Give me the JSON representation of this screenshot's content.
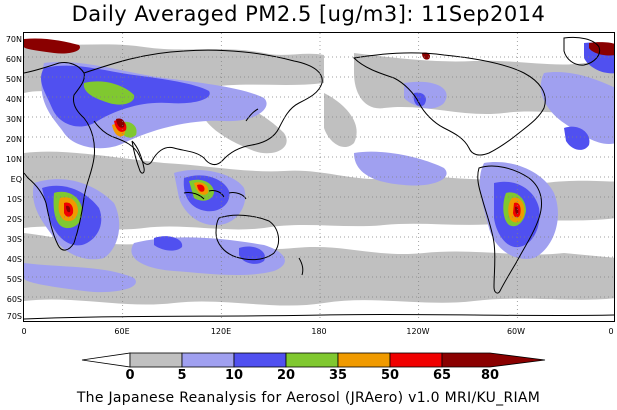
{
  "title": "Daily Averaged PM2.5 [ug/m3]: 11Sep2014",
  "credit": "The Japanese Reanalysis for Aerosol (JRAero) v1.0 MRI/KU_RIAM",
  "lat_labels": [
    "70N",
    "60N",
    "50N",
    "40N",
    "30N",
    "20N",
    "10N",
    "EQ",
    "10S",
    "20S",
    "30S",
    "40S",
    "50S",
    "60S",
    "70S"
  ],
  "lon_labels": [
    "0",
    "60E",
    "120E",
    "180",
    "120W",
    "60W",
    "0"
  ],
  "colorbar": {
    "labels": [
      "0",
      "5",
      "10",
      "20",
      "35",
      "50",
      "65",
      "80"
    ],
    "colors": [
      "#ffffff",
      "#c0c0c0",
      "#a0a0f0",
      "#5050f0",
      "#80c830",
      "#f09a00",
      "#f00000",
      "#8a0000"
    ]
  },
  "legend_colors": {
    "lt5": "#ffffff",
    "c5_10": "#c0c0c0",
    "c10_20": "#a0a0f0",
    "c20_35": "#5050f0",
    "c35_50": "#80c830",
    "c50_65": "#f09a00",
    "c65_80": "#f00000",
    "gt80": "#8a0000"
  }
}
